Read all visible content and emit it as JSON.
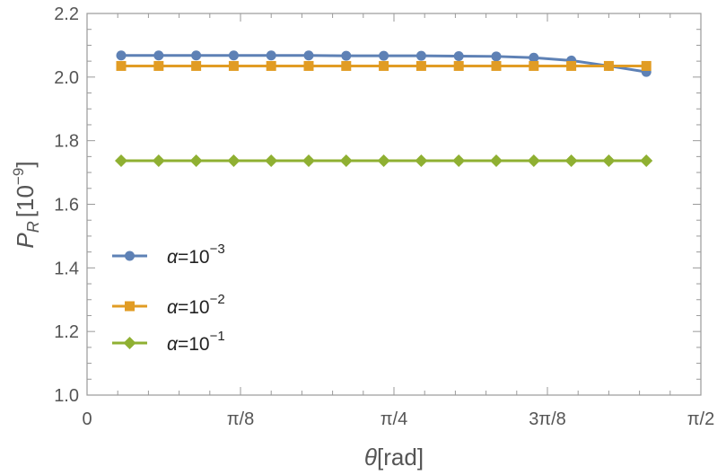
{
  "chart_data": {
    "type": "line",
    "xlabel": {
      "symbol": "θ",
      "unit": "[rad]"
    },
    "ylabel": {
      "symbol": "P",
      "subscript": "R",
      "unit_prefix": "[10",
      "unit_exp": "−9",
      "unit_suffix": "]"
    },
    "xlim": [
      0,
      1.5707963
    ],
    "ylim": [
      1.0,
      2.2
    ],
    "x_ticks": [
      {
        "value": 0,
        "label": "0"
      },
      {
        "value": 0.3926991,
        "label": "π/8"
      },
      {
        "value": 0.7853982,
        "label": "π/4"
      },
      {
        "value": 1.1780972,
        "label": "3π/8"
      },
      {
        "value": 1.5707963,
        "label": "π/2"
      }
    ],
    "y_ticks": [
      {
        "value": 1.0,
        "label": "1.0"
      },
      {
        "value": 1.2,
        "label": "1.2"
      },
      {
        "value": 1.4,
        "label": "1.4"
      },
      {
        "value": 1.6,
        "label": "1.6"
      },
      {
        "value": 1.8,
        "label": "1.8"
      },
      {
        "value": 2.0,
        "label": "2.0"
      },
      {
        "value": 2.2,
        "label": "2.2"
      }
    ],
    "grid": false,
    "legend_position": "lower-left",
    "x": [
      0.0873,
      0.1833,
      0.2793,
      0.3753,
      0.4712,
      0.5672,
      0.6632,
      0.7592,
      0.8552,
      0.9512,
      1.0472,
      1.1432,
      1.2392,
      1.3352,
      1.4312
    ],
    "series": [
      {
        "name_prefix": "α=10",
        "name_exp": "−3",
        "color": "#5E81B5",
        "marker": "circle",
        "values": [
          2.068,
          2.068,
          2.068,
          2.068,
          2.068,
          2.068,
          2.067,
          2.067,
          2.067,
          2.066,
          2.065,
          2.061,
          2.052,
          2.035,
          2.016
        ]
      },
      {
        "name_prefix": "α=10",
        "name_exp": "−2",
        "color": "#E19C24",
        "marker": "square",
        "values": [
          2.035,
          2.035,
          2.035,
          2.035,
          2.035,
          2.035,
          2.035,
          2.035,
          2.035,
          2.035,
          2.035,
          2.035,
          2.035,
          2.035,
          2.035
        ]
      },
      {
        "name_prefix": "α=10",
        "name_exp": "−1",
        "color": "#8FB032",
        "marker": "diamond",
        "values": [
          1.737,
          1.737,
          1.737,
          1.737,
          1.737,
          1.737,
          1.737,
          1.737,
          1.737,
          1.737,
          1.737,
          1.737,
          1.737,
          1.737,
          1.737
        ]
      }
    ]
  }
}
